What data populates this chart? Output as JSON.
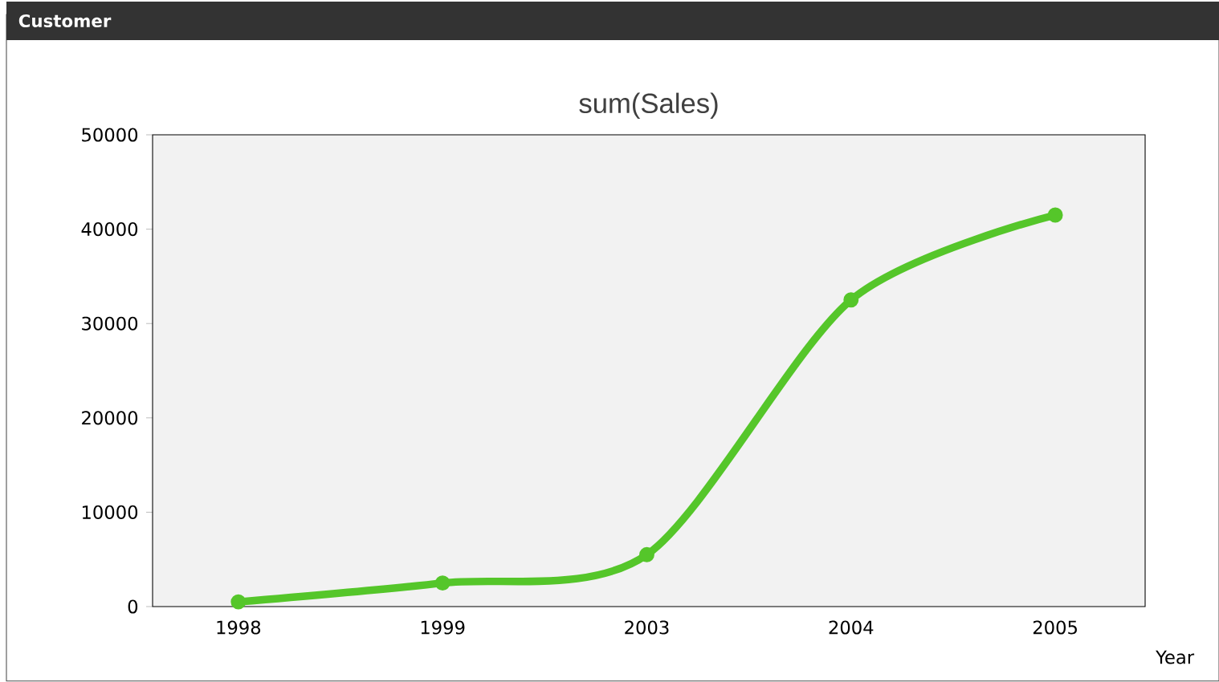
{
  "chart_data": {
    "type": "line",
    "title": "sum(Sales)",
    "xlabel": "Year",
    "annotations": [
      "Customer"
    ],
    "categories": [
      "1998",
      "1999",
      "2003",
      "2004",
      "2005"
    ],
    "series": [
      {
        "color": "#55c62a",
        "values": [
          500,
          2500,
          5500,
          32500,
          41500
        ]
      }
    ],
    "ylim": [
      0,
      50000
    ],
    "yticks": [
      0,
      10000,
      20000,
      30000,
      40000,
      50000
    ],
    "grid": false,
    "marker": "circle",
    "line_style": "solid"
  }
}
